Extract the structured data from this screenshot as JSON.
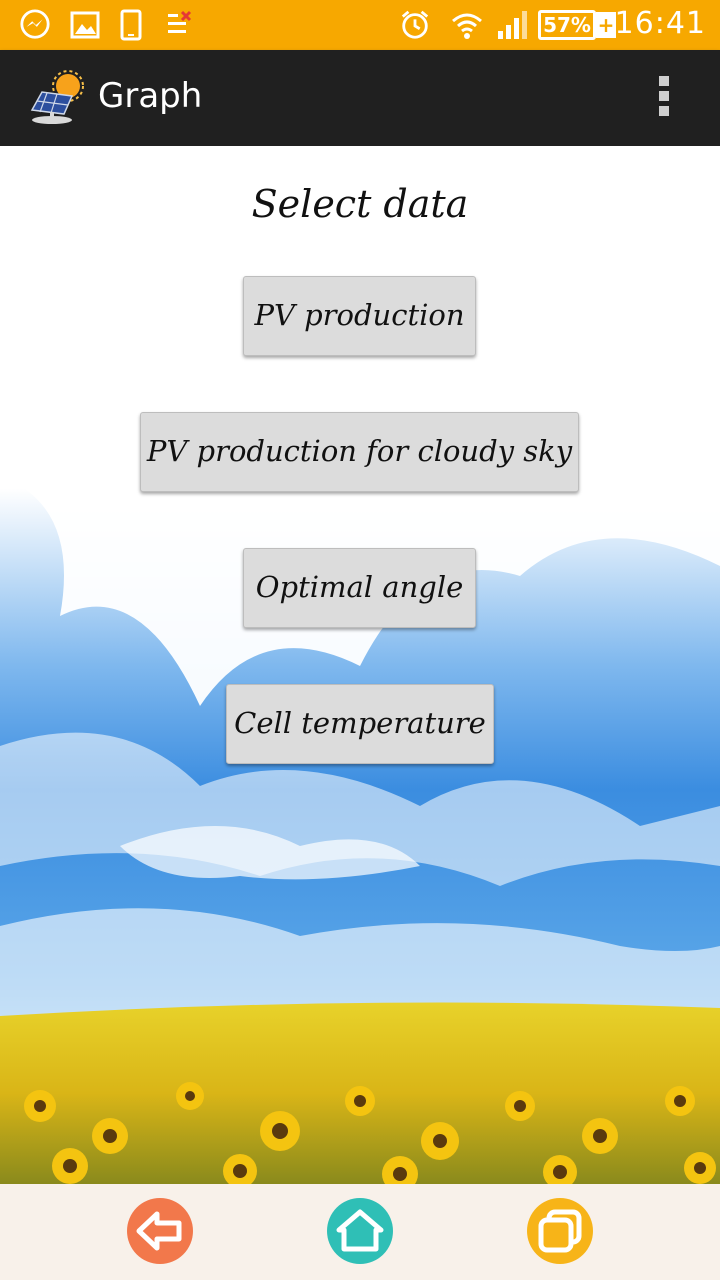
{
  "status_bar": {
    "battery_percent": "57%",
    "battery_plus": "+",
    "time": "16:41",
    "icons": [
      "messenger-icon",
      "gallery-icon",
      "phone-icon",
      "data-off-icon",
      "alarm-icon",
      "wifi-icon",
      "signal-icon",
      "battery-icon"
    ]
  },
  "app_bar": {
    "title": "Graph",
    "logo_icon": "solar-panel-sun-icon",
    "menu_icon": "overflow-menu-icon"
  },
  "main": {
    "heading": "Select data",
    "buttons": [
      {
        "label": "PV production"
      },
      {
        "label": "PV production for cloudy sky"
      },
      {
        "label": "Optimal angle"
      },
      {
        "label": "Cell temperature"
      }
    ]
  },
  "bottom_nav": {
    "items": [
      {
        "icon": "back-arrow-icon",
        "color": "#f2784b"
      },
      {
        "icon": "home-icon",
        "color": "#2fbfb6"
      },
      {
        "icon": "recent-apps-icon",
        "color": "#f7b418"
      }
    ]
  },
  "colors": {
    "status_bar": "#f7a800",
    "app_bar": "#202020",
    "button": "#dcdcdc",
    "sky": "#3d8ee0"
  }
}
